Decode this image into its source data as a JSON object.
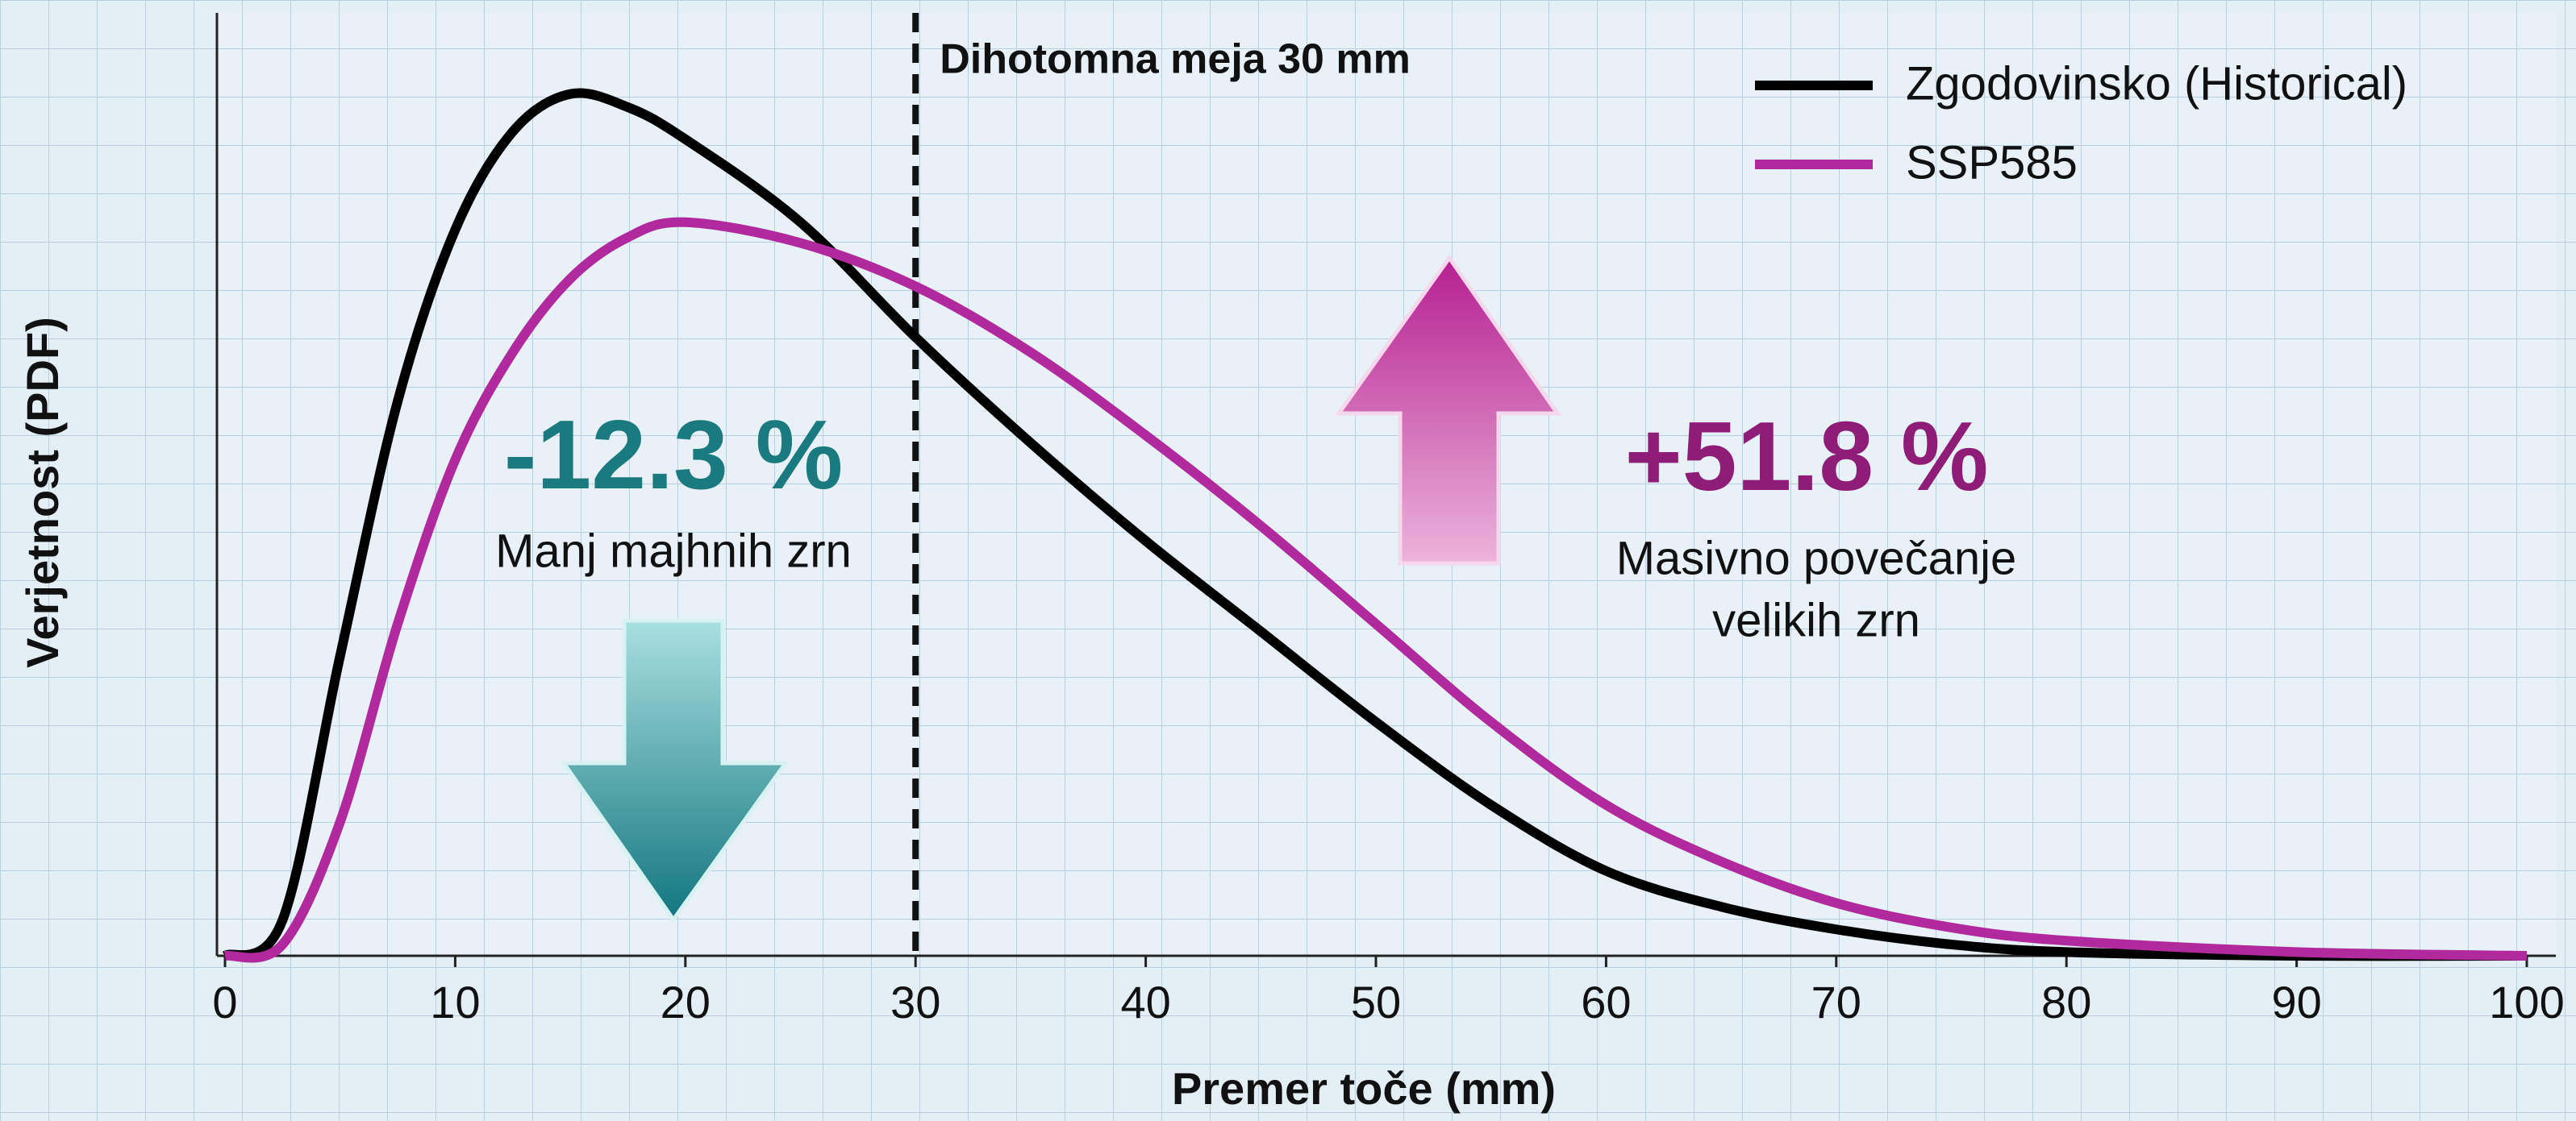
{
  "chart_data": {
    "type": "line",
    "x_label": "Premer toče (mm)",
    "y_label": "Verjetnost (PDF)",
    "x": [
      0,
      2.5,
      5,
      7.5,
      10,
      12.5,
      15,
      17.5,
      20,
      25,
      30,
      35,
      40,
      45,
      50,
      55,
      60,
      65,
      70,
      75,
      80,
      90,
      100
    ],
    "series": [
      {
        "name": "Zgodovinsko (Historical)",
        "color": "#000000",
        "values": [
          0,
          0.0019,
          0.0159,
          0.0294,
          0.0385,
          0.0437,
          0.0457,
          0.045,
          0.0433,
          0.0389,
          0.0328,
          0.0272,
          0.022,
          0.0172,
          0.0124,
          0.008,
          0.0045,
          0.0026,
          0.0014,
          0.0006,
          0.0002,
          0,
          0
        ]
      },
      {
        "name": "SSP585",
        "color": "#b02a9e",
        "values": [
          0,
          0.0006,
          0.0071,
          0.0176,
          0.0263,
          0.032,
          0.0359,
          0.0381,
          0.0389,
          0.0378,
          0.0355,
          0.032,
          0.0276,
          0.0228,
          0.0176,
          0.0124,
          0.008,
          0.005,
          0.0028,
          0.0015,
          0.0008,
          0.0002,
          0
        ]
      }
    ],
    "xlim": [
      0,
      100
    ],
    "xticks": [
      0,
      10,
      20,
      30,
      40,
      50,
      60,
      70,
      80,
      90,
      100
    ],
    "ylim": [
      0,
      0.05
    ],
    "threshold": {
      "value": 30,
      "label": "Dihotomna meja 30 mm"
    },
    "annotations": [
      {
        "value_label": "-12.3 %",
        "text": [
          "Manj majhnih zrn"
        ],
        "color": "#1b7a80"
      },
      {
        "value_label": "+51.8 %",
        "text": [
          "Masivno povečanje",
          "velikih zrn"
        ],
        "color": "#8e1d77"
      }
    ],
    "legend": "upper right"
  }
}
